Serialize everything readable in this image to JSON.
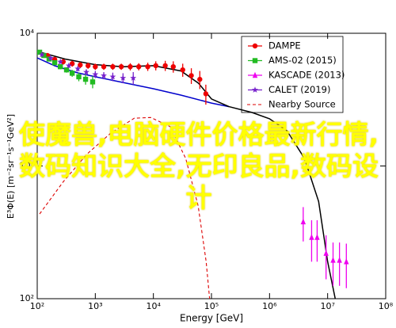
{
  "chart_data": {
    "type": "scatter",
    "xlabel": "Energy [GeV]",
    "ylabel": "E³Φ(E) [m⁻²sr⁻¹s⁻¹GeV²]",
    "xscale": "log",
    "yscale": "log",
    "xlim": [
      100,
      100000000
    ],
    "ylim": [
      100,
      10000
    ],
    "xticks": [
      {
        "value": 100,
        "label": "10²"
      },
      {
        "value": 1000,
        "label": "10³"
      },
      {
        "value": 10000,
        "label": "10⁴"
      },
      {
        "value": 100000,
        "label": "10⁵"
      },
      {
        "value": 1000000,
        "label": "10⁶"
      },
      {
        "value": 10000000,
        "label": "10⁷"
      },
      {
        "value": 100000000,
        "label": "10⁸"
      }
    ],
    "yticks": [
      {
        "value": 100,
        "label": "10²"
      },
      {
        "value": 1000,
        "label": "10³"
      },
      {
        "value": 10000,
        "label": "10⁴"
      }
    ],
    "legend": "upper right",
    "series": [
      {
        "style": "line",
        "color": "#0000cc",
        "x": [
          100,
          200,
          500,
          1000,
          3000,
          10000,
          30000,
          100000,
          200000
        ],
        "values": [
          6530,
          5690,
          5030,
          4700,
          4260,
          3820,
          3420,
          2980,
          2800
        ]
      },
      {
        "style": "line",
        "color": "#000000",
        "x": [
          100,
          300,
          1000,
          3000,
          10000,
          30000,
          60000,
          100000,
          200000,
          500000,
          1000000,
          2000000,
          4000000,
          7000000,
          10000000,
          15000000
        ],
        "values": [
          7300,
          6400,
          5800,
          5600,
          5700,
          5200,
          4200,
          3200,
          2800,
          2530,
          2270,
          1840,
          1140,
          540,
          190,
          80
        ]
      },
      {
        "name": "DAMPE",
        "style": "points",
        "marker": "circle",
        "color": "#ee0000",
        "x": [
          150,
          200,
          280,
          400,
          550,
          750,
          1000,
          1400,
          2000,
          2800,
          4000,
          5600,
          8000,
          11000,
          16000,
          22000,
          32000,
          45000,
          63000,
          80000
        ],
        "values": [
          6800,
          6350,
          6100,
          5900,
          5770,
          5700,
          5600,
          5600,
          5600,
          5600,
          5600,
          5600,
          5600,
          5700,
          5700,
          5600,
          5300,
          4800,
          4500,
          3500
        ],
        "errors": [
          300,
          300,
          300,
          300,
          300,
          300,
          300,
          300,
          300,
          300,
          350,
          350,
          400,
          450,
          500,
          550,
          600,
          650,
          700,
          600
        ]
      },
      {
        "name": "AMS-02 (2015)",
        "style": "points",
        "marker": "square",
        "color": "#22bb22",
        "x": [
          110,
          130,
          160,
          200,
          250,
          320,
          400,
          520,
          680,
          900
        ],
        "values": [
          7200,
          6800,
          6400,
          6000,
          5600,
          5300,
          5000,
          4700,
          4500,
          4300
        ],
        "errors": [
          200,
          200,
          200,
          200,
          250,
          250,
          300,
          350,
          400,
          450
        ]
      },
      {
        "name": "KASCADE (2013)",
        "style": "points",
        "marker": "triangle",
        "color": "#ee00ee",
        "x": [
          3800000,
          5300000,
          6600000,
          9400000,
          12400000,
          16000000,
          21000000
        ],
        "values": [
          380,
          290,
          290,
          220,
          195,
          195,
          190
        ],
        "errors": [
          110,
          100,
          100,
          80,
          70,
          70,
          70
        ]
      },
      {
        "name": "CALET (2019)",
        "style": "points",
        "marker": "star",
        "color": "#7722cc",
        "x": [
          120,
          170,
          250,
          350,
          500,
          700,
          1000,
          1400,
          2000,
          3000,
          4500
        ],
        "values": [
          6900,
          6500,
          6100,
          5700,
          5400,
          5100,
          4900,
          4800,
          4700,
          4600,
          4600
        ],
        "errors": [
          200,
          200,
          200,
          200,
          250,
          250,
          300,
          300,
          350,
          400,
          500
        ]
      },
      {
        "name": "Nearby Source",
        "style": "dashed",
        "color": "#dd0000",
        "x": [
          110,
          280,
          720,
          1850,
          4700,
          9000,
          19500,
          36000,
          59000,
          81000,
          94000
        ],
        "values": [
          435,
          760,
          1230,
          1770,
          2290,
          2320,
          1980,
          1140,
          500,
          190,
          95
        ]
      }
    ]
  },
  "overlay_text": "使魔兽,电脑硬件价格最新行情,数码知识大全,无印良品,数码设计"
}
